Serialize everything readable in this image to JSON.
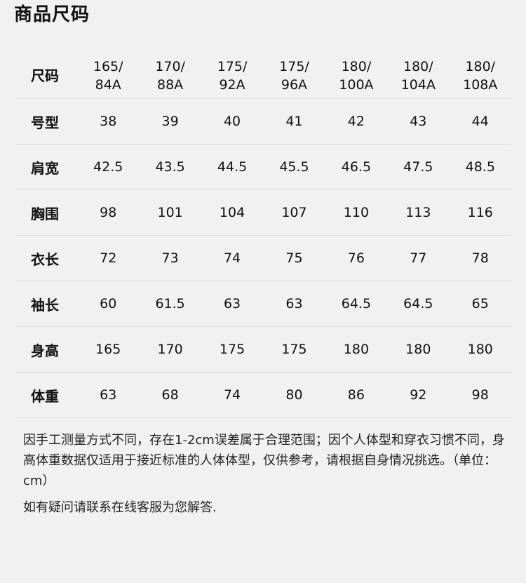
{
  "page": {
    "title": "商品尺码"
  },
  "size_table": {
    "header_label": "尺码",
    "sizes": [
      "165/84A",
      "170/88A",
      "175/92A",
      "175/96A",
      "180/100A",
      "180/104A",
      "180/108A"
    ],
    "rows": [
      {
        "label": "号型",
        "values": [
          "38",
          "39",
          "40",
          "41",
          "42",
          "43",
          "44"
        ]
      },
      {
        "label": "肩宽",
        "values": [
          "42.5",
          "43.5",
          "44.5",
          "45.5",
          "46.5",
          "47.5",
          "48.5"
        ]
      },
      {
        "label": "胸围",
        "values": [
          "98",
          "101",
          "104",
          "107",
          "110",
          "113",
          "116"
        ]
      },
      {
        "label": "衣长",
        "values": [
          "72",
          "73",
          "74",
          "75",
          "76",
          "77",
          "78"
        ]
      },
      {
        "label": "袖长",
        "values": [
          "60",
          "61.5",
          "63",
          "63",
          "64.5",
          "64.5",
          "65"
        ]
      },
      {
        "label": "身高",
        "values": [
          "165",
          "170",
          "175",
          "175",
          "180",
          "180",
          "180"
        ]
      },
      {
        "label": "体重",
        "values": [
          "63",
          "68",
          "74",
          "80",
          "86",
          "92",
          "98"
        ]
      }
    ]
  },
  "notes": {
    "disclaimer": "因手工测量方式不同，存在1-2cm误差属于合理范围；因个人体型和穿衣习惯不同，身高体重数据仅适用于接近标准的人体体型，仅供参考，请根据自身情况挑选。（单位：cm）",
    "contact": "如有疑问请联系在线客服为您解答."
  }
}
